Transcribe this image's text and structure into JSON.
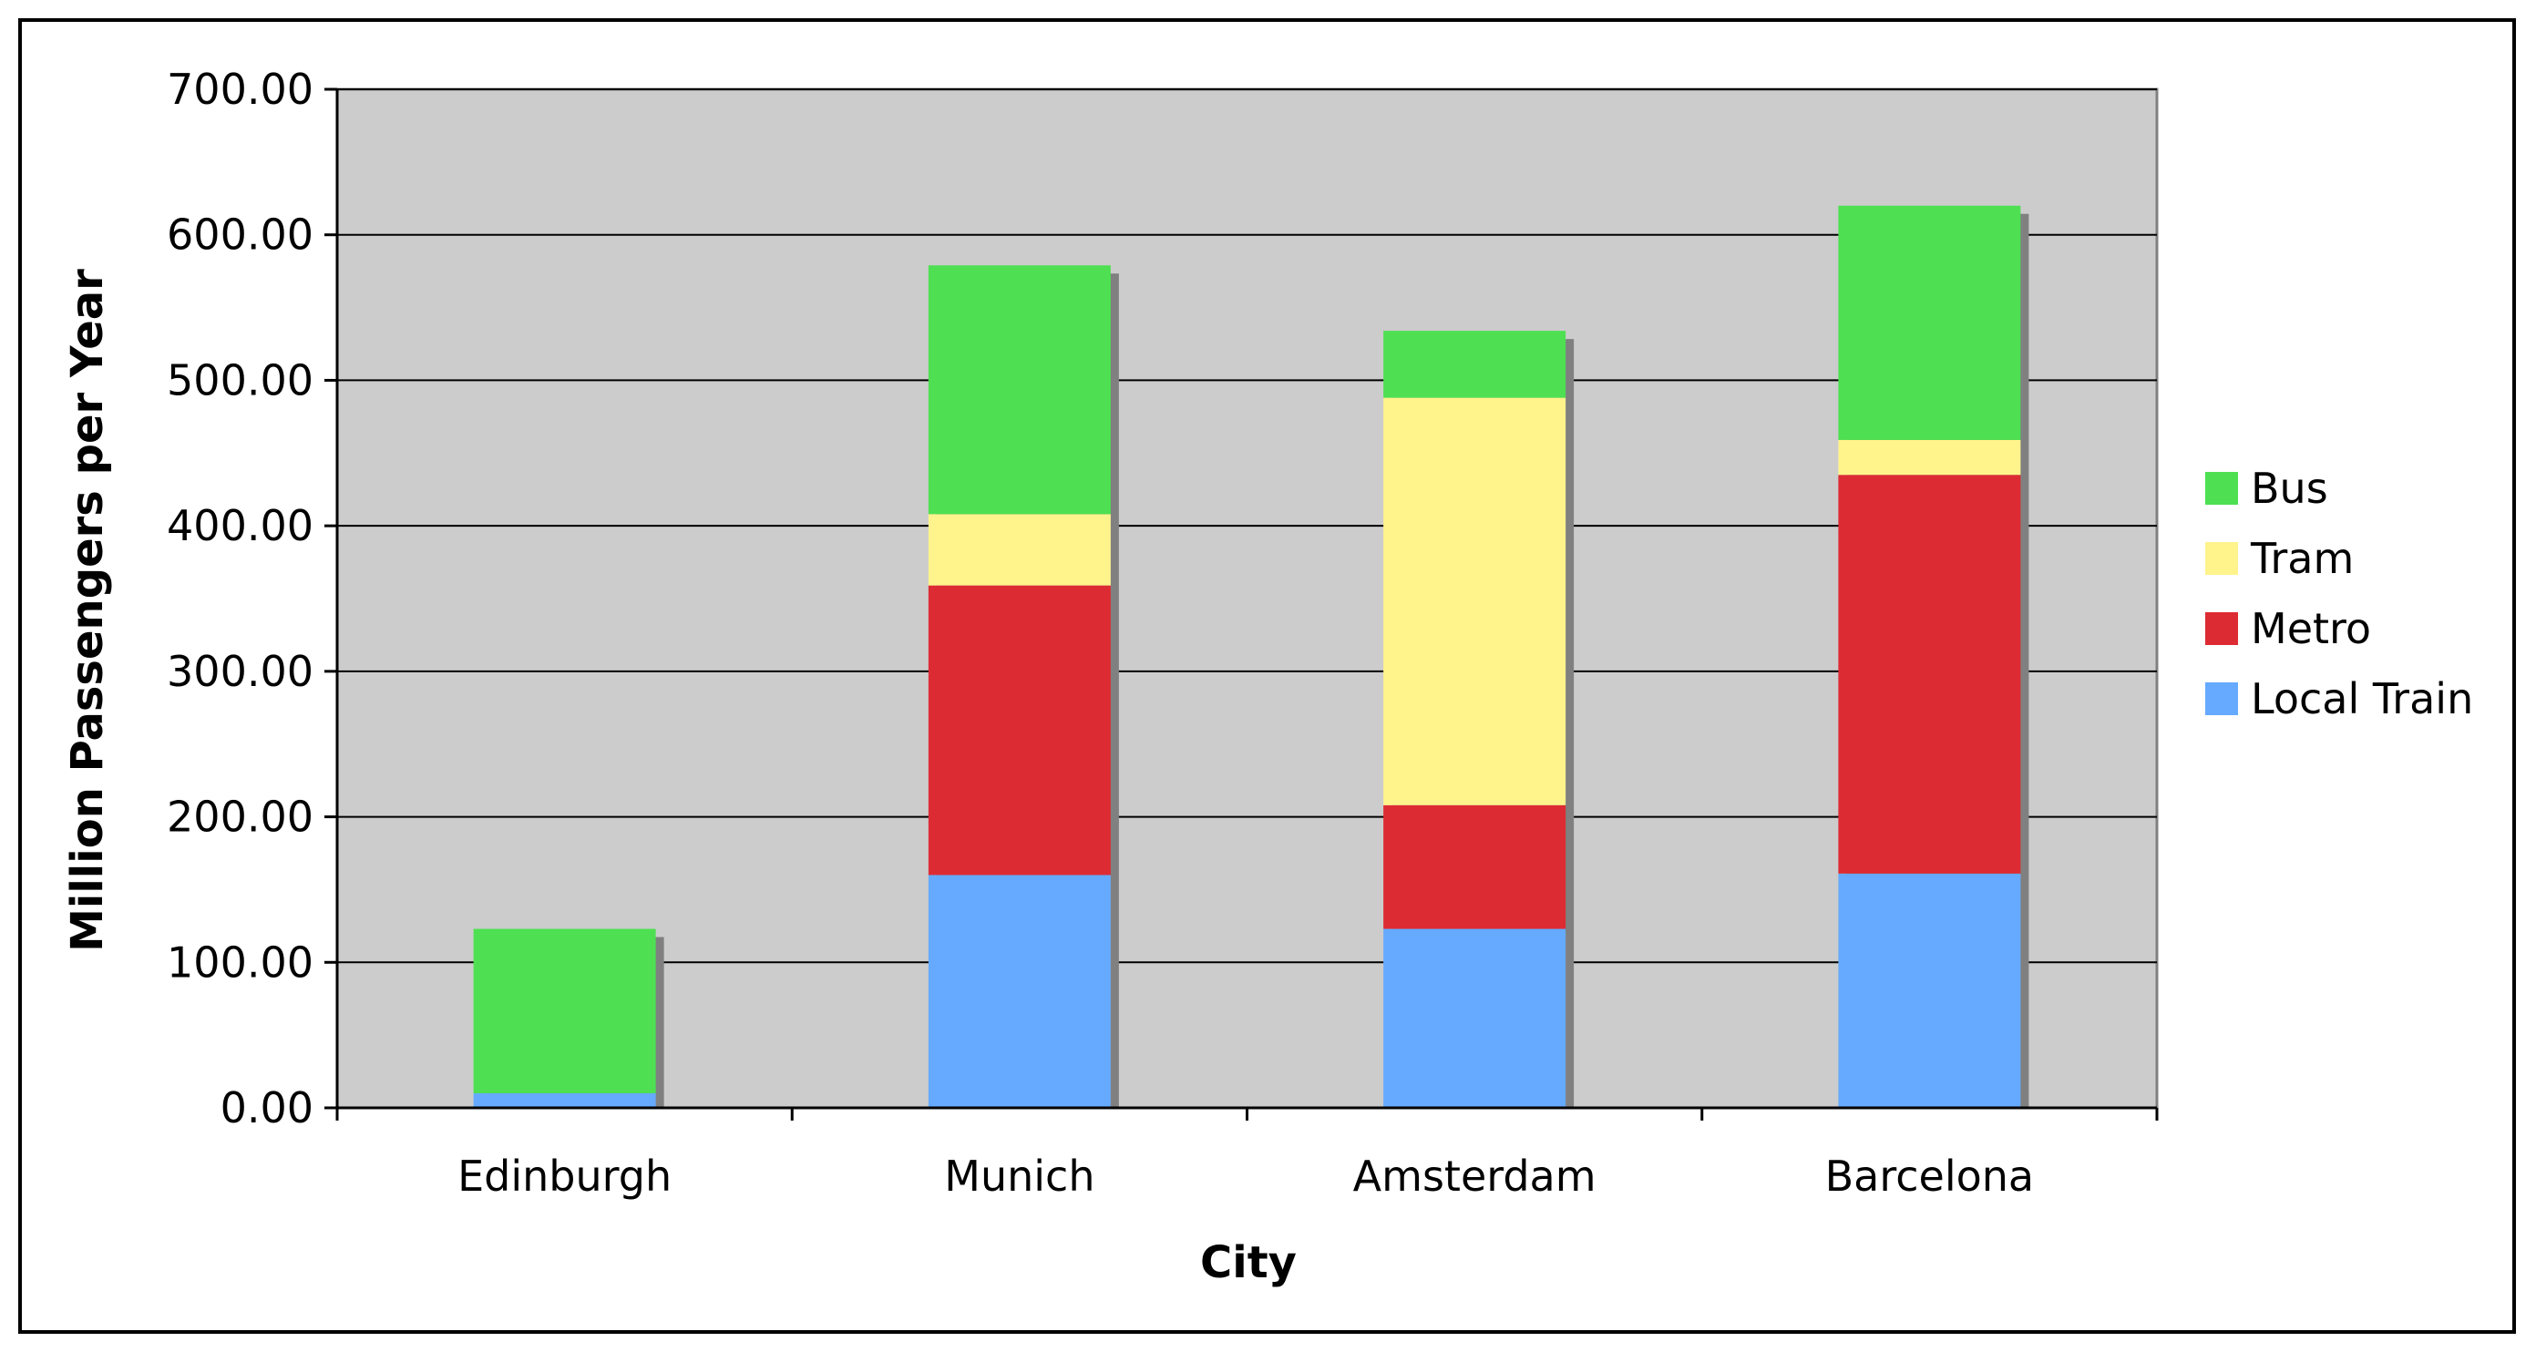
{
  "chart_data": {
    "type": "bar",
    "stacked": true,
    "title": "",
    "xlabel": "City",
    "ylabel": "Million Passengers per Year",
    "categories": [
      "Edinburgh",
      "Munich",
      "Amsterdam",
      "Barcelona"
    ],
    "series": [
      {
        "name": "Local Train",
        "color": "#66aaff",
        "values": [
          10,
          160,
          123,
          161
        ]
      },
      {
        "name": "Metro",
        "color": "#dd2b33",
        "values": [
          0,
          199,
          85,
          274
        ]
      },
      {
        "name": "Tram",
        "color": "#fff38c",
        "values": [
          0,
          49,
          280,
          24
        ]
      },
      {
        "name": "Bus",
        "color": "#4ee052",
        "values": [
          113,
          171,
          46,
          161
        ]
      }
    ],
    "ylim": [
      0,
      700
    ],
    "yticks": [
      "0.00",
      "100.00",
      "200.00",
      "300.00",
      "400.00",
      "500.00",
      "600.00",
      "700.00"
    ],
    "legend_position": "right",
    "legend_order": [
      "Bus",
      "Tram",
      "Metro",
      "Local Train"
    ],
    "grid": true,
    "plot_background": "#cccccc",
    "shadow_color": "#808080"
  }
}
